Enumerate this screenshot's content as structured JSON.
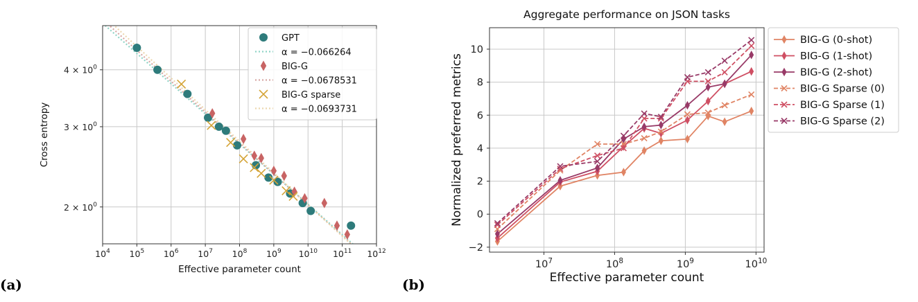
{
  "panels": {
    "a": "(a)",
    "b": "(b)"
  },
  "chart_data": [
    {
      "type": "scatter",
      "title": "",
      "xlabel": "Effective parameter count",
      "ylabel": "Cross entropy",
      "xscale": "log",
      "yscale": "log",
      "xlim": [
        10000,
        1000000000000
      ],
      "ylim": [
        1.66,
        5.0
      ],
      "grid": true,
      "legend_position": "top-right",
      "x_ticks": [
        {
          "value": 10000,
          "base": "10",
          "exp": "4"
        },
        {
          "value": 100000,
          "base": "10",
          "exp": "5"
        },
        {
          "value": 1000000,
          "base": "10",
          "exp": "6"
        },
        {
          "value": 10000000,
          "base": "10",
          "exp": "7"
        },
        {
          "value": 100000000,
          "base": "10",
          "exp": "8"
        },
        {
          "value": 1000000000,
          "base": "10",
          "exp": "9"
        },
        {
          "value": 10000000000,
          "base": "10",
          "exp": "10"
        },
        {
          "value": 100000000000,
          "base": "10",
          "exp": "11"
        },
        {
          "value": 1000000000000,
          "base": "10",
          "exp": "12"
        }
      ],
      "y_ticks": [
        {
          "value": 2,
          "label": "2 × 10",
          "exp": "0"
        },
        {
          "value": 3,
          "label": "3 × 10",
          "exp": "0"
        },
        {
          "value": 4,
          "label": "4 × 10",
          "exp": "0"
        }
      ],
      "series": [
        {
          "name": "GPT",
          "marker": "circle",
          "color": "#2e7b7b",
          "points": [
            [
              100000,
              4.47
            ],
            [
              400000,
              4.0
            ],
            [
              3000000,
              3.54
            ],
            [
              12000000,
              3.14
            ],
            [
              25000000,
              3.0
            ],
            [
              40000000,
              2.94
            ],
            [
              85000000,
              2.73
            ],
            [
              300000000,
              2.47
            ],
            [
              700000000,
              2.32
            ],
            [
              1300000000,
              2.27
            ],
            [
              3000000000,
              2.14
            ],
            [
              7000000000,
              2.04
            ],
            [
              12000000000,
              1.96
            ],
            [
              180000000000,
              1.82
            ]
          ]
        },
        {
          "name": "BIG-G",
          "marker": "diamond",
          "color": "#c86464",
          "points": [
            [
              16000000,
              3.21
            ],
            [
              130000000,
              2.82
            ],
            [
              270000000,
              2.59
            ],
            [
              430000000,
              2.56
            ],
            [
              1000000000,
              2.4
            ],
            [
              2000000000,
              2.34
            ],
            [
              4000000000,
              2.16
            ],
            [
              8000000000,
              2.09
            ],
            [
              30000000000,
              2.04
            ],
            [
              70000000000,
              1.82
            ],
            [
              140000000000,
              1.74
            ]
          ]
        },
        {
          "name": "BIG-G sparse",
          "marker": "x",
          "color": "#d4a437",
          "points": [
            [
              2000000,
              3.72
            ],
            [
              15000000,
              3.02
            ],
            [
              55000000,
              2.77
            ],
            [
              130000000,
              2.55
            ],
            [
              270000000,
              2.44
            ],
            [
              430000000,
              2.37
            ],
            [
              1000000000,
              2.29
            ],
            [
              2300000000,
              2.17
            ],
            [
              3700000000,
              2.11
            ]
          ]
        }
      ],
      "fits": [
        {
          "name": "α = −0.066264",
          "alpha": -0.066264,
          "ref_x": 10000,
          "ref_y": 5.06,
          "color": "#8fd4c6"
        },
        {
          "name": "α = −0.0678531",
          "alpha": -0.0678531,
          "ref_x": 10000,
          "ref_y": 5.16,
          "color": "#d7a8a4"
        },
        {
          "name": "α = −0.0693731",
          "alpha": -0.0693731,
          "ref_x": 10000,
          "ref_y": 5.28,
          "color": "#ecd7ae"
        }
      ],
      "legend_order": [
        "s:0",
        "f:0",
        "s:1",
        "f:1",
        "s:2",
        "f:2"
      ]
    },
    {
      "type": "line",
      "title": "Aggregate performance on JSON tasks",
      "xlabel": "Effective parameter count",
      "ylabel": "Normalized preferred metrics",
      "xscale": "log",
      "xlim": [
        1700000,
        13000000000
      ],
      "ylim": [
        -2.3,
        11.3
      ],
      "grid": true,
      "legend_position": "outside-right",
      "x_ticks": [
        {
          "value": 10000000,
          "base": "10",
          "exp": "7"
        },
        {
          "value": 100000000,
          "base": "10",
          "exp": "8"
        },
        {
          "value": 1000000000,
          "base": "10",
          "exp": "9"
        },
        {
          "value": 10000000000,
          "base": "10",
          "exp": "10"
        }
      ],
      "y_ticks": [
        -2,
        0,
        2,
        4,
        6,
        8,
        10
      ],
      "x": [
        2200000,
        17000000,
        57000000,
        134000000,
        262000000,
        453000000,
        1070000000,
        2100000000,
        3600000000,
        8600000000
      ],
      "series": [
        {
          "name": "BIG-G (0-shot)",
          "color": "#e08464",
          "dash": false,
          "marker": "diamond",
          "values": [
            -1.65,
            1.7,
            2.35,
            2.55,
            3.85,
            4.45,
            4.55,
            5.95,
            5.6,
            6.25
          ]
        },
        {
          "name": "BIG-G (1-shot)",
          "color": "#cf4f63",
          "dash": false,
          "marker": "diamond",
          "values": [
            -1.45,
            1.95,
            2.6,
            4.1,
            5.2,
            4.9,
            5.7,
            6.85,
            7.9,
            8.65
          ]
        },
        {
          "name": "BIG-G (2-shot)",
          "color": "#983a67",
          "dash": false,
          "marker": "diamond",
          "values": [
            -1.2,
            2.05,
            2.8,
            4.55,
            5.3,
            5.4,
            6.6,
            7.7,
            7.9,
            9.65
          ]
        },
        {
          "name": "BIG-G Sparse (0)",
          "color": "#e08464",
          "dash": true,
          "marker": "x",
          "values": [
            -0.9,
            2.65,
            4.25,
            4.25,
            4.6,
            5.0,
            6.05,
            6.15,
            6.6,
            7.25
          ]
        },
        {
          "name": "BIG-G Sparse (1)",
          "color": "#cf4f63",
          "dash": true,
          "marker": "x",
          "values": [
            -0.65,
            2.75,
            3.55,
            4.0,
            5.8,
            5.8,
            8.05,
            8.05,
            8.6,
            10.2
          ]
        },
        {
          "name": "BIG-G Sparse (2)",
          "color": "#983a67",
          "dash": true,
          "marker": "x",
          "values": [
            -0.55,
            2.9,
            3.2,
            4.75,
            6.1,
            5.9,
            8.3,
            8.6,
            9.3,
            10.55
          ]
        }
      ]
    }
  ]
}
